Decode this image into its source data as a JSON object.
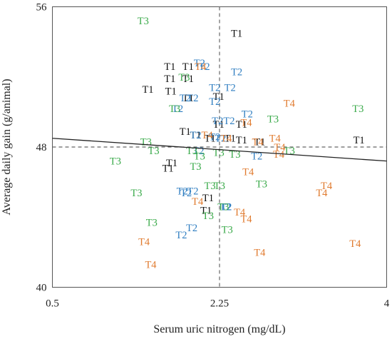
{
  "chart_data": {
    "type": "scatter",
    "title": "",
    "xlabel": "Serum uric nitrogen (mg/dL)",
    "ylabel": "Average daily gain (g/animal)",
    "xlim": [
      0.5,
      4
    ],
    "ylim": [
      40,
      56
    ],
    "xticks": [
      "0.5",
      "2.25",
      "4"
    ],
    "yticks": [
      "40",
      "48",
      "56"
    ],
    "reference_lines": {
      "x": 2.25,
      "y": 48
    },
    "trendline": {
      "x": [
        0.5,
        4
      ],
      "y": [
        48.5,
        47.2
      ]
    },
    "colors": {
      "T1": "#111111",
      "T2": "#2f7ec1",
      "T3": "#3aaa4a",
      "T4": "#e07a2e"
    },
    "series": [
      {
        "name": "T1",
        "points": [
          [
            2.43,
            54.5
          ],
          [
            1.73,
            52.6
          ],
          [
            1.92,
            52.6
          ],
          [
            1.73,
            51.9
          ],
          [
            1.92,
            51.9
          ],
          [
            1.5,
            51.3
          ],
          [
            1.74,
            51.2
          ],
          [
            1.92,
            50.8
          ],
          [
            2.24,
            50.9
          ],
          [
            2.24,
            49.3
          ],
          [
            2.48,
            49.3
          ],
          [
            1.89,
            48.9
          ],
          [
            2.0,
            48.7
          ],
          [
            2.15,
            48.5
          ],
          [
            2.36,
            48.5
          ],
          [
            2.48,
            48.4
          ],
          [
            2.67,
            48.3
          ],
          [
            3.71,
            48.4
          ],
          [
            1.75,
            47.1
          ],
          [
            1.71,
            46.8
          ],
          [
            2.13,
            45.1
          ],
          [
            2.11,
            44.4
          ]
        ]
      },
      {
        "name": "T2",
        "points": [
          [
            2.04,
            52.8
          ],
          [
            2.09,
            52.6
          ],
          [
            2.43,
            52.3
          ],
          [
            2.2,
            51.4
          ],
          [
            2.36,
            51.4
          ],
          [
            1.89,
            50.8
          ],
          [
            1.97,
            50.8
          ],
          [
            2.2,
            50.6
          ],
          [
            1.81,
            50.2
          ],
          [
            2.54,
            49.9
          ],
          [
            2.23,
            49.5
          ],
          [
            2.35,
            49.5
          ],
          [
            2.0,
            48.7
          ],
          [
            2.2,
            48.6
          ],
          [
            2.26,
            48.5
          ],
          [
            2.03,
            47.8
          ],
          [
            2.64,
            47.5
          ],
          [
            1.86,
            45.5
          ],
          [
            1.9,
            45.4
          ],
          [
            1.97,
            45.5
          ],
          [
            2.31,
            44.6
          ],
          [
            2.32,
            44.6
          ],
          [
            1.96,
            43.4
          ],
          [
            1.85,
            43.0
          ]
        ]
      },
      {
        "name": "T3",
        "points": [
          [
            1.45,
            55.2
          ],
          [
            1.88,
            52.0
          ],
          [
            1.78,
            50.2
          ],
          [
            3.7,
            50.2
          ],
          [
            2.81,
            49.6
          ],
          [
            1.48,
            48.3
          ],
          [
            1.56,
            47.8
          ],
          [
            1.96,
            47.8
          ],
          [
            2.24,
            47.7
          ],
          [
            2.41,
            47.6
          ],
          [
            2.98,
            47.8
          ],
          [
            2.04,
            47.5
          ],
          [
            1.16,
            47.2
          ],
          [
            2.0,
            46.9
          ],
          [
            2.69,
            45.9
          ],
          [
            2.15,
            45.8
          ],
          [
            2.25,
            45.8
          ],
          [
            1.38,
            45.4
          ],
          [
            2.29,
            44.6
          ],
          [
            2.13,
            44.1
          ],
          [
            1.54,
            43.7
          ],
          [
            2.33,
            43.3
          ]
        ]
      },
      {
        "name": "T4",
        "points": [
          [
            2.05,
            52.6
          ],
          [
            2.98,
            50.5
          ],
          [
            2.53,
            49.4
          ],
          [
            2.12,
            48.7
          ],
          [
            2.32,
            48.5
          ],
          [
            2.65,
            48.3
          ],
          [
            2.83,
            48.5
          ],
          [
            2.88,
            48.0
          ],
          [
            2.87,
            47.6
          ],
          [
            2.55,
            46.6
          ],
          [
            3.37,
            45.8
          ],
          [
            3.32,
            45.4
          ],
          [
            2.02,
            44.9
          ],
          [
            2.46,
            44.3
          ],
          [
            2.53,
            43.9
          ],
          [
            1.46,
            42.6
          ],
          [
            2.67,
            42.0
          ],
          [
            3.67,
            42.5
          ],
          [
            1.53,
            41.3
          ]
        ]
      }
    ]
  }
}
